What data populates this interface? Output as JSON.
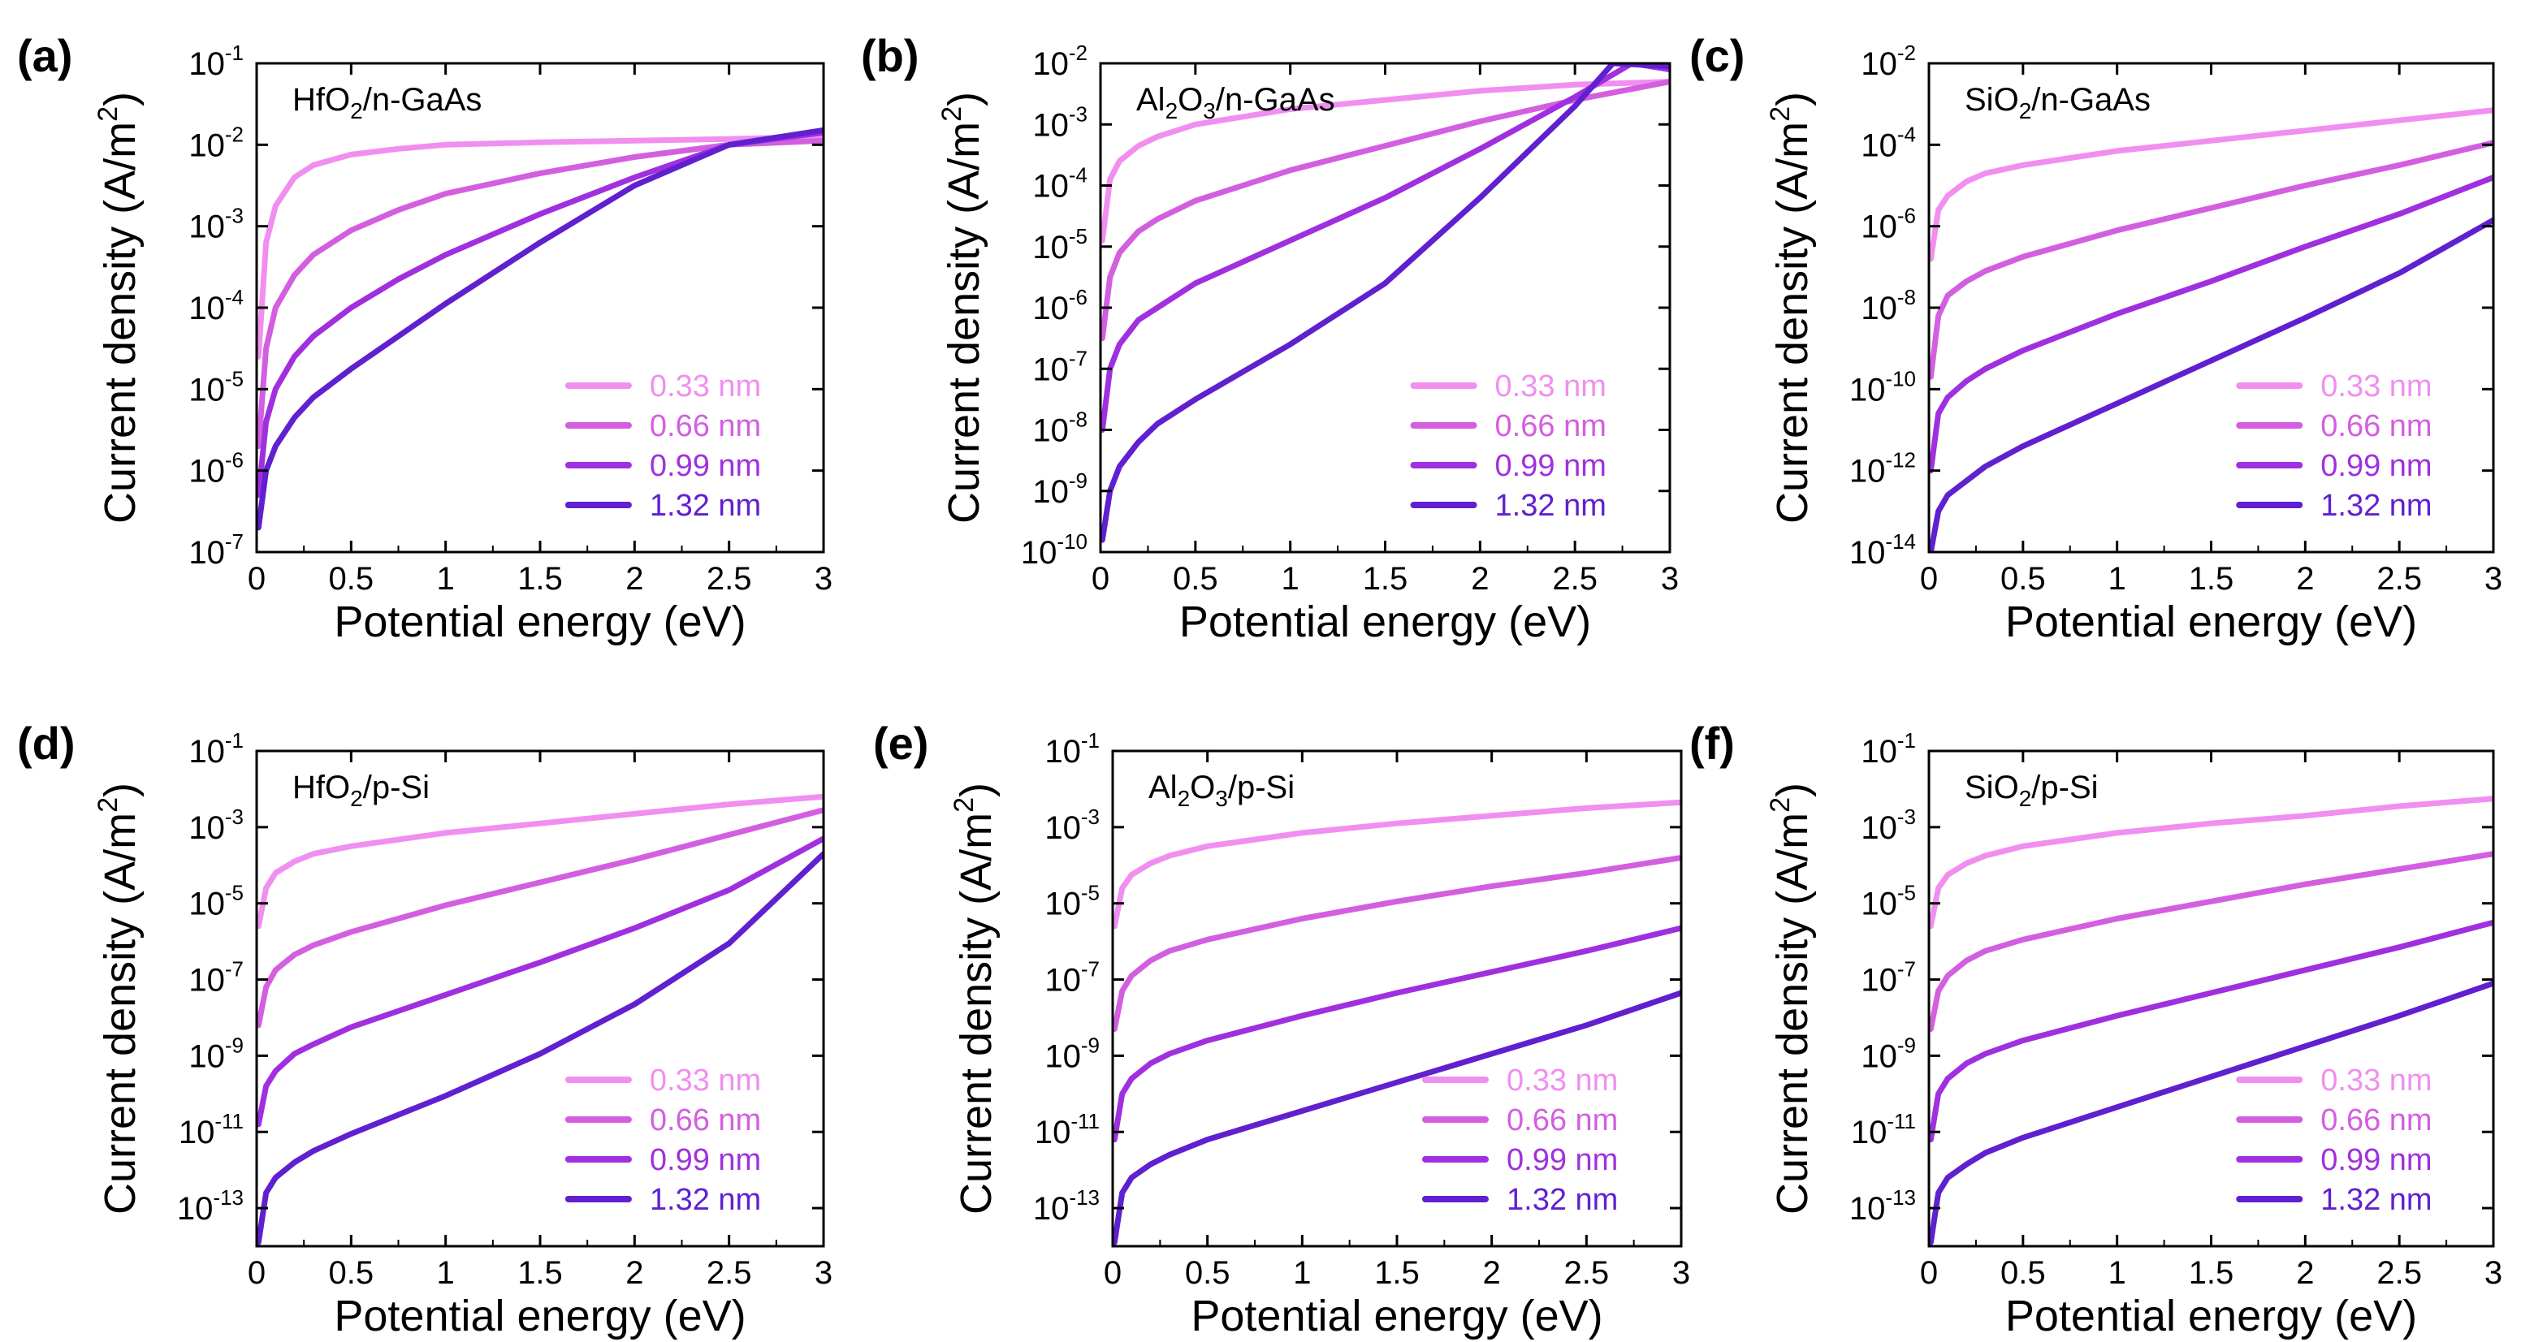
{
  "chart_data": [
    {
      "type": "line",
      "letter": "(a)",
      "material": {
        "base": "HfO",
        "sub": "2",
        "rest": "/n-GaAs"
      },
      "xlabel": "Potential energy (eV)",
      "ylabel": "Current density (A/m",
      "ylabel_sup": "2",
      "ylabel_end": ")",
      "xlim": [
        0,
        3
      ],
      "xticks": [
        "0",
        "0.5",
        "1",
        "1.5",
        "2",
        "2.5",
        "3"
      ],
      "ylim_exp": [
        -7,
        -1
      ],
      "yticks_exp": [
        "-7",
        "-6",
        "-5",
        "-4",
        "-3",
        "-2",
        "-1"
      ],
      "series": [
        {
          "name": "0.33 nm",
          "color": "#f08ff0",
          "x": [
            0.01,
            0.05,
            0.1,
            0.2,
            0.3,
            0.5,
            0.75,
            1.0,
            1.5,
            2.0,
            2.5,
            3.0
          ],
          "log10_y": [
            -4.6,
            -3.2,
            -2.75,
            -2.4,
            -2.25,
            -2.12,
            -2.05,
            -2.0,
            -1.97,
            -1.95,
            -1.93,
            -1.9
          ]
        },
        {
          "name": "0.66 nm",
          "color": "#d35fe0",
          "x": [
            0.01,
            0.05,
            0.1,
            0.2,
            0.3,
            0.5,
            0.75,
            1.0,
            1.5,
            2.0,
            2.5,
            3.0
          ],
          "log10_y": [
            -5.7,
            -4.5,
            -4.0,
            -3.6,
            -3.35,
            -3.05,
            -2.8,
            -2.6,
            -2.35,
            -2.15,
            -2.0,
            -1.95
          ]
        },
        {
          "name": "0.99 nm",
          "color": "#a030df",
          "x": [
            0.01,
            0.05,
            0.1,
            0.2,
            0.3,
            0.5,
            0.75,
            1.0,
            1.5,
            2.0,
            2.5,
            3.0
          ],
          "log10_y": [
            -6.3,
            -5.4,
            -5.0,
            -4.6,
            -4.35,
            -4.0,
            -3.65,
            -3.35,
            -2.85,
            -2.4,
            -2.0,
            -1.85
          ]
        },
        {
          "name": "1.32 nm",
          "color": "#6020d0",
          "x": [
            0.01,
            0.05,
            0.1,
            0.2,
            0.3,
            0.5,
            0.75,
            1.0,
            1.5,
            2.0,
            2.5,
            3.0
          ],
          "log10_y": [
            -6.7,
            -6.0,
            -5.7,
            -5.35,
            -5.1,
            -4.75,
            -4.35,
            -3.95,
            -3.2,
            -2.5,
            -2.0,
            -1.82
          ]
        }
      ]
    },
    {
      "type": "line",
      "letter": "(b)",
      "material": {
        "base": "Al",
        "sub": "2",
        "mid": "O",
        "sub2": "3",
        "rest": "/n-GaAs"
      },
      "xlabel": "Potential energy (eV)",
      "ylabel": "Current density (A/m",
      "ylabel_sup": "2",
      "ylabel_end": ")",
      "xlim": [
        0,
        3
      ],
      "xticks": [
        "0",
        "0.5",
        "1",
        "1.5",
        "2",
        "2.5",
        "3"
      ],
      "ylim_exp": [
        -10,
        -2
      ],
      "yticks_exp": [
        "-10",
        "-9",
        "-8",
        "-7",
        "-6",
        "-5",
        "-4",
        "-3",
        "-2"
      ],
      "series": [
        {
          "name": "0.33 nm",
          "color": "#f08ff0",
          "x": [
            0.01,
            0.05,
            0.1,
            0.2,
            0.3,
            0.5,
            1.0,
            1.5,
            2.0,
            2.5,
            3.0
          ],
          "log10_y": [
            -4.9,
            -3.9,
            -3.6,
            -3.35,
            -3.2,
            -3.0,
            -2.75,
            -2.6,
            -2.45,
            -2.35,
            -2.3
          ]
        },
        {
          "name": "0.66 nm",
          "color": "#d35fe0",
          "x": [
            0.01,
            0.05,
            0.1,
            0.2,
            0.3,
            0.5,
            1.0,
            1.5,
            2.0,
            2.5,
            3.0
          ],
          "log10_y": [
            -6.5,
            -5.5,
            -5.1,
            -4.75,
            -4.55,
            -4.25,
            -3.75,
            -3.35,
            -2.95,
            -2.6,
            -2.3
          ]
        },
        {
          "name": "0.99 nm",
          "color": "#a030df",
          "x": [
            0.01,
            0.05,
            0.1,
            0.2,
            0.3,
            0.5,
            1.0,
            1.5,
            2.0,
            2.5,
            2.8,
            3.0
          ],
          "log10_y": [
            -8.0,
            -7.0,
            -6.6,
            -6.2,
            -6.0,
            -5.6,
            -4.9,
            -4.2,
            -3.4,
            -2.55,
            -2.0,
            -2.1
          ]
        },
        {
          "name": "1.32 nm",
          "color": "#6020d0",
          "x": [
            0.01,
            0.05,
            0.1,
            0.2,
            0.3,
            0.5,
            1.0,
            1.5,
            2.0,
            2.5,
            2.7,
            3.0
          ],
          "log10_y": [
            -9.8,
            -9.0,
            -8.6,
            -8.2,
            -7.9,
            -7.5,
            -6.6,
            -5.6,
            -4.2,
            -2.7,
            -2.0,
            -2.05
          ]
        }
      ]
    },
    {
      "type": "line",
      "letter": "(c)",
      "material": {
        "base": "SiO",
        "sub": "2",
        "rest": "/n-GaAs"
      },
      "xlabel": "Potential energy (eV)",
      "ylabel": "Current density (A/m",
      "ylabel_sup": "2",
      "ylabel_end": ")",
      "xlim": [
        0,
        3
      ],
      "xticks": [
        "0",
        "0.5",
        "1",
        "1.5",
        "2",
        "2.5",
        "3"
      ],
      "ylim_exp": [
        -14,
        -2
      ],
      "yticks_exp": [
        "-14",
        "-12",
        "-10",
        "-8",
        "-6",
        "-4",
        "-2"
      ],
      "series": [
        {
          "name": "0.33 nm",
          "color": "#f08ff0",
          "x": [
            0.01,
            0.05,
            0.1,
            0.2,
            0.3,
            0.5,
            1.0,
            1.5,
            2.0,
            2.5,
            3.0
          ],
          "log10_y": [
            -6.8,
            -5.6,
            -5.25,
            -4.9,
            -4.7,
            -4.5,
            -4.15,
            -3.9,
            -3.65,
            -3.4,
            -3.15
          ]
        },
        {
          "name": "0.66 nm",
          "color": "#d35fe0",
          "x": [
            0.01,
            0.05,
            0.1,
            0.2,
            0.3,
            0.5,
            1.0,
            1.5,
            2.0,
            2.5,
            3.0
          ],
          "log10_y": [
            -9.7,
            -8.2,
            -7.7,
            -7.35,
            -7.1,
            -6.75,
            -6.1,
            -5.55,
            -5.0,
            -4.5,
            -3.95
          ]
        },
        {
          "name": "0.99 nm",
          "color": "#a030df",
          "x": [
            0.01,
            0.05,
            0.1,
            0.2,
            0.3,
            0.5,
            1.0,
            1.5,
            2.0,
            2.5,
            3.0
          ],
          "log10_y": [
            -12.0,
            -10.6,
            -10.2,
            -9.8,
            -9.5,
            -9.05,
            -8.15,
            -7.35,
            -6.5,
            -5.7,
            -4.8
          ]
        },
        {
          "name": "1.32 nm",
          "color": "#6020d0",
          "x": [
            0.01,
            0.05,
            0.1,
            0.2,
            0.3,
            0.5,
            1.0,
            1.5,
            2.0,
            2.5,
            3.0
          ],
          "log10_y": [
            -14.0,
            -13.0,
            -12.6,
            -12.25,
            -11.9,
            -11.4,
            -10.35,
            -9.3,
            -8.25,
            -7.15,
            -5.85
          ]
        }
      ]
    },
    {
      "type": "line",
      "letter": "(d)",
      "material": {
        "base": "HfO",
        "sub": "2",
        "rest": "/p-Si"
      },
      "xlabel": "Potential energy (eV)",
      "ylabel": "Current density (A/m",
      "ylabel_sup": "2",
      "ylabel_end": ")",
      "xlim": [
        0,
        3
      ],
      "xticks": [
        "0",
        "0.5",
        "1",
        "1.5",
        "2",
        "2.5",
        "3"
      ],
      "ylim_exp": [
        -14,
        -1
      ],
      "yticks_exp": [
        "-13",
        "-11",
        "-9",
        "-7",
        "-5",
        "-3",
        "-1"
      ],
      "series": [
        {
          "name": "0.33 nm",
          "color": "#f08ff0",
          "x": [
            0.01,
            0.05,
            0.1,
            0.2,
            0.3,
            0.5,
            1.0,
            1.5,
            2.0,
            2.5,
            3.0
          ],
          "log10_y": [
            -5.6,
            -4.6,
            -4.2,
            -3.9,
            -3.7,
            -3.5,
            -3.15,
            -2.9,
            -2.65,
            -2.4,
            -2.2
          ]
        },
        {
          "name": "0.66 nm",
          "color": "#d35fe0",
          "x": [
            0.01,
            0.05,
            0.1,
            0.2,
            0.3,
            0.5,
            1.0,
            1.5,
            2.0,
            2.5,
            3.0
          ],
          "log10_y": [
            -8.2,
            -7.2,
            -6.75,
            -6.35,
            -6.1,
            -5.75,
            -5.05,
            -4.45,
            -3.85,
            -3.2,
            -2.55
          ]
        },
        {
          "name": "0.99 nm",
          "color": "#a030df",
          "x": [
            0.01,
            0.05,
            0.1,
            0.2,
            0.3,
            0.5,
            1.0,
            1.5,
            2.0,
            2.5,
            3.0
          ],
          "log10_y": [
            -10.8,
            -9.8,
            -9.4,
            -8.95,
            -8.7,
            -8.25,
            -7.4,
            -6.55,
            -5.65,
            -4.65,
            -3.3
          ]
        },
        {
          "name": "1.32 nm",
          "color": "#6020d0",
          "x": [
            0.01,
            0.05,
            0.1,
            0.2,
            0.3,
            0.5,
            1.0,
            1.5,
            2.0,
            2.5,
            3.0
          ],
          "log10_y": [
            -13.9,
            -12.6,
            -12.2,
            -11.8,
            -11.5,
            -11.05,
            -10.05,
            -8.95,
            -7.65,
            -6.05,
            -3.7
          ]
        }
      ]
    },
    {
      "type": "line",
      "letter": "(e)",
      "material": {
        "base": "Al",
        "sub": "2",
        "mid": "O",
        "sub2": "3",
        "rest": "/p-Si"
      },
      "xlabel": "Potential energy (eV)",
      "ylabel": "Current density (A/m",
      "ylabel_sup": "2",
      "ylabel_end": ")",
      "xlim": [
        0,
        3
      ],
      "xticks": [
        "0",
        "0.5",
        "1",
        "1.5",
        "2",
        "2.5",
        "3"
      ],
      "ylim_exp": [
        -14,
        -1
      ],
      "yticks_exp": [
        "-13",
        "-11",
        "-9",
        "-7",
        "-5",
        "-3",
        "-1"
      ],
      "series": [
        {
          "name": "0.33 nm",
          "color": "#f08ff0",
          "x": [
            0.01,
            0.05,
            0.1,
            0.2,
            0.3,
            0.5,
            1.0,
            1.5,
            2.0,
            2.5,
            3.0
          ],
          "log10_y": [
            -5.6,
            -4.6,
            -4.25,
            -3.95,
            -3.75,
            -3.5,
            -3.15,
            -2.9,
            -2.7,
            -2.5,
            -2.35
          ]
        },
        {
          "name": "0.66 nm",
          "color": "#d35fe0",
          "x": [
            0.01,
            0.05,
            0.1,
            0.2,
            0.3,
            0.5,
            1.0,
            1.5,
            2.0,
            2.5,
            3.0
          ],
          "log10_y": [
            -8.3,
            -7.3,
            -6.9,
            -6.5,
            -6.25,
            -5.95,
            -5.4,
            -4.95,
            -4.55,
            -4.2,
            -3.8
          ]
        },
        {
          "name": "0.99 nm",
          "color": "#a030df",
          "x": [
            0.01,
            0.05,
            0.1,
            0.2,
            0.3,
            0.5,
            1.0,
            1.5,
            2.0,
            2.5,
            3.0
          ],
          "log10_y": [
            -11.2,
            -10.0,
            -9.6,
            -9.2,
            -8.95,
            -8.6,
            -7.95,
            -7.35,
            -6.8,
            -6.25,
            -5.65
          ]
        },
        {
          "name": "1.32 nm",
          "color": "#6020d0",
          "x": [
            0.01,
            0.05,
            0.1,
            0.2,
            0.3,
            0.5,
            1.0,
            1.5,
            2.0,
            2.5,
            3.0
          ],
          "log10_y": [
            -13.9,
            -12.6,
            -12.2,
            -11.85,
            -11.6,
            -11.2,
            -10.45,
            -9.7,
            -8.95,
            -8.2,
            -7.35
          ]
        }
      ]
    },
    {
      "type": "line",
      "letter": "(f)",
      "material": {
        "base": "SiO",
        "sub": "2",
        "rest": "/p-Si"
      },
      "xlabel": "Potential energy (eV)",
      "ylabel": "Current density (A/m",
      "ylabel_sup": "2",
      "ylabel_end": ")",
      "xlim": [
        0,
        3
      ],
      "xticks": [
        "0",
        "0.5",
        "1",
        "1.5",
        "2",
        "2.5",
        "3"
      ],
      "ylim_exp": [
        -14,
        -1
      ],
      "yticks_exp": [
        "-13",
        "-11",
        "-9",
        "-7",
        "-5",
        "-3",
        "-1"
      ],
      "series": [
        {
          "name": "0.33 nm",
          "color": "#f08ff0",
          "x": [
            0.01,
            0.05,
            0.1,
            0.2,
            0.3,
            0.5,
            1.0,
            1.5,
            2.0,
            2.5,
            3.0
          ],
          "log10_y": [
            -5.6,
            -4.6,
            -4.25,
            -3.95,
            -3.75,
            -3.5,
            -3.15,
            -2.9,
            -2.7,
            -2.45,
            -2.25
          ]
        },
        {
          "name": "0.66 nm",
          "color": "#d35fe0",
          "x": [
            0.01,
            0.05,
            0.1,
            0.2,
            0.3,
            0.5,
            1.0,
            1.5,
            2.0,
            2.5,
            3.0
          ],
          "log10_y": [
            -8.3,
            -7.3,
            -6.9,
            -6.5,
            -6.25,
            -5.95,
            -5.4,
            -4.95,
            -4.5,
            -4.1,
            -3.7
          ]
        },
        {
          "name": "0.99 nm",
          "color": "#a030df",
          "x": [
            0.01,
            0.05,
            0.1,
            0.2,
            0.3,
            0.5,
            1.0,
            1.5,
            2.0,
            2.5,
            3.0
          ],
          "log10_y": [
            -11.2,
            -10.0,
            -9.6,
            -9.2,
            -8.95,
            -8.6,
            -7.95,
            -7.35,
            -6.75,
            -6.15,
            -5.5
          ]
        },
        {
          "name": "1.32 nm",
          "color": "#6020d0",
          "x": [
            0.01,
            0.05,
            0.1,
            0.2,
            0.3,
            0.5,
            1.0,
            1.5,
            2.0,
            2.5,
            3.0
          ],
          "log10_y": [
            -13.9,
            -12.6,
            -12.2,
            -11.85,
            -11.55,
            -11.15,
            -10.35,
            -9.55,
            -8.75,
            -7.95,
            -7.1
          ]
        }
      ]
    }
  ]
}
